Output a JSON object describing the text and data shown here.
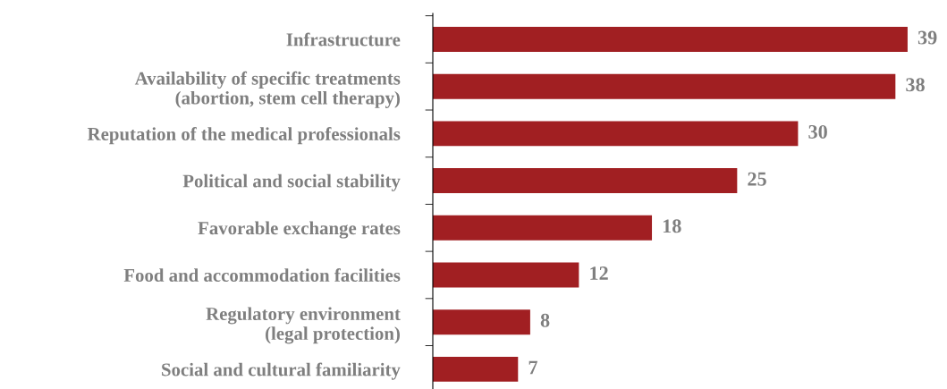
{
  "chart_data": {
    "type": "bar",
    "orientation": "horizontal",
    "categories": [
      "Infrastructure",
      "Availability of specific treatments\n(abortion, stem cell therapy)",
      "Reputation of the medical professionals",
      "Political and social stability",
      "Favorable exchange rates",
      "Food and accommodation facilities",
      "Regulatory environment\n(legal protection)",
      "Social and cultural familiarity"
    ],
    "values": [
      39,
      38,
      30,
      25,
      18,
      12,
      8,
      7
    ],
    "color": "#a11f22",
    "data_labels": true,
    "grid": false,
    "legend": false
  }
}
